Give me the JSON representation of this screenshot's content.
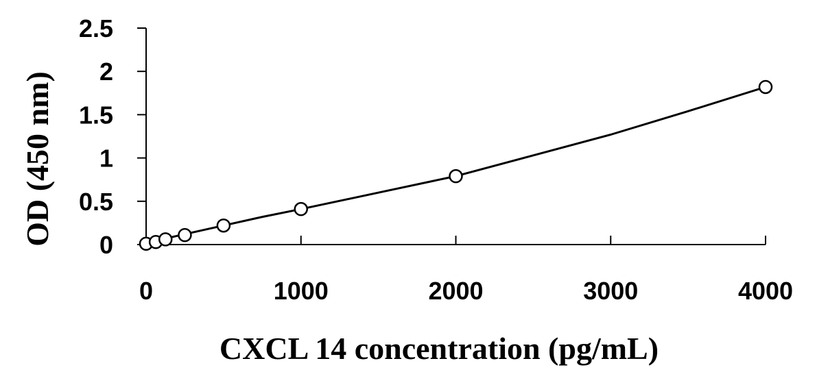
{
  "chart_data": {
    "type": "scatter",
    "title": "",
    "xlabel": "CXCL 14 concentration (pg/mL)",
    "ylabel": "OD (450 nm)",
    "xlim": [
      0,
      4000
    ],
    "ylim": [
      0,
      2.5
    ],
    "x_ticks": [
      "0",
      "1000",
      "2000",
      "3000",
      "4000"
    ],
    "y_ticks": [
      "0",
      "0.5",
      "1",
      "1.5",
      "2",
      "2.5"
    ],
    "grid": false,
    "legend": "none",
    "series": [
      {
        "marker": "open-circle",
        "x": [
          0,
          62.5,
          125,
          250,
          500,
          1000,
          2000,
          4000
        ],
        "y": [
          0.01,
          0.03,
          0.06,
          0.11,
          0.22,
          0.41,
          0.79,
          1.82
        ]
      }
    ],
    "fit_curve": {
      "style": "solid-line",
      "x": [
        0,
        250,
        500,
        750,
        1000,
        1500,
        2000,
        2500,
        3000,
        3500,
        4000
      ],
      "y": [
        0.02,
        0.12,
        0.22,
        0.32,
        0.41,
        0.6,
        0.79,
        1.03,
        1.27,
        1.54,
        1.82
      ]
    },
    "colors": {
      "axis": "#000000",
      "marker": "#000000",
      "line": "#000000"
    }
  }
}
